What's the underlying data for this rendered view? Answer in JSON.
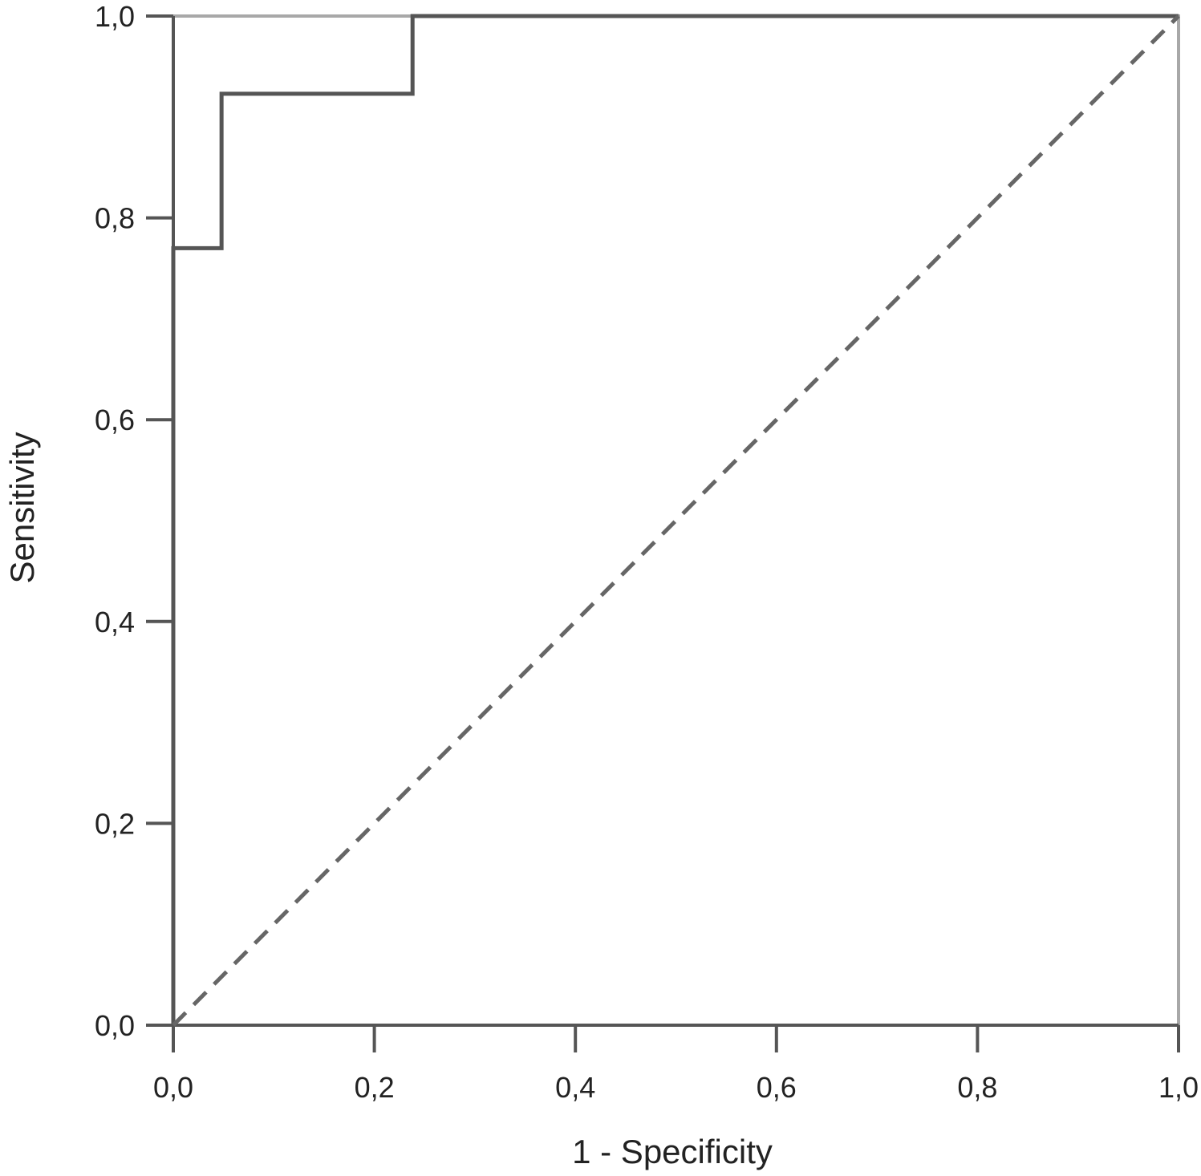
{
  "chart_data": {
    "type": "line",
    "title": "",
    "xlabel": "1 - Specificity",
    "ylabel": "Sensitivity",
    "xlim": [
      0,
      1
    ],
    "ylim": [
      0,
      1
    ],
    "grid": false,
    "x_ticks": [
      0,
      0.2,
      0.4,
      0.6,
      0.8,
      1.0
    ],
    "x_tick_labels": [
      "0,0",
      "0,2",
      "0,4",
      "0,6",
      "0,8",
      "1,0"
    ],
    "y_ticks": [
      0,
      0.2,
      0.4,
      0.6,
      0.8,
      1.0
    ],
    "y_tick_labels": [
      "0,0",
      "0,2",
      "0,4",
      "0,6",
      "0,8",
      "1,0"
    ],
    "series": [
      {
        "style": "step",
        "color": "#555555",
        "points": [
          [
            0,
            0
          ],
          [
            0,
            0.77
          ],
          [
            0.048,
            0.77
          ],
          [
            0.048,
            0.923
          ],
          [
            0.238,
            0.923
          ],
          [
            0.238,
            1.0
          ],
          [
            1.0,
            1.0
          ]
        ]
      },
      {
        "style": "dashed",
        "color": "#666666",
        "points": [
          [
            0,
            0
          ],
          [
            1.0,
            1.0
          ]
        ]
      }
    ]
  }
}
